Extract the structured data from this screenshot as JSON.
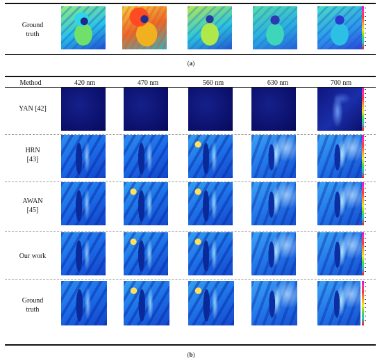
{
  "panel_a": {
    "row_label": "Ground truth",
    "caption_open": "(",
    "caption_letter": "a",
    "caption_close": ")"
  },
  "panel_b": {
    "header_method": "Method",
    "wavelengths": [
      "420 nm",
      "470 nm",
      "560 nm",
      "630 nm",
      "700 nm"
    ],
    "rows": [
      {
        "label": "YAN [42]"
      },
      {
        "label_line1": "HRN",
        "label_line2": "[43]"
      },
      {
        "label_line1": "AWAN",
        "label_line2": "[45]"
      },
      {
        "label": "Our work"
      },
      {
        "label_line1": "Ground",
        "label_line2": "truth"
      }
    ],
    "caption_open": "(",
    "caption_letter": "b",
    "caption_close": ")"
  },
  "colors": {
    "colorbar_top": "#e40fd2",
    "colorbar_bottom": "#ff1a1a",
    "deep_blue": "#1244c8"
  }
}
